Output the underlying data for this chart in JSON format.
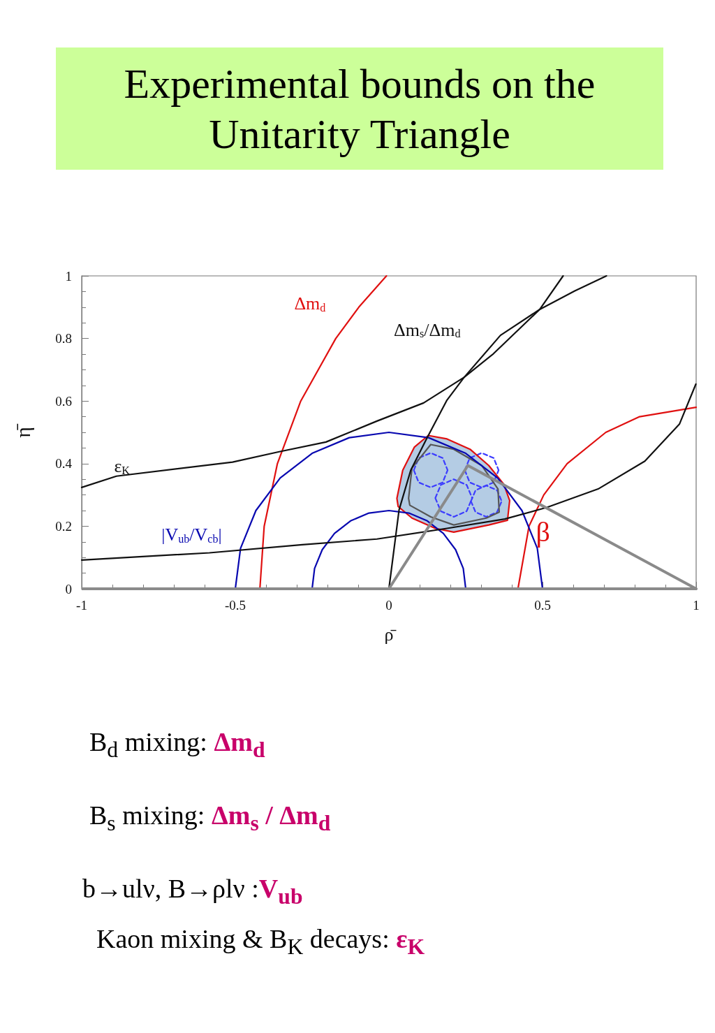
{
  "chart_data": {
    "type": "line",
    "title": "Experimental bounds on the Unitarity Triangle",
    "xlabel": "ρ̄",
    "ylabel": "η̄",
    "annotations": [
      "B$_{d}$  mixing:  Δm$_{d}$",
      "B$_{s}$  mixing: Δm$_{s}$ / Δm$_{d}$",
      "b→ulν, B→ρlν :V$_{ub}$",
      "Kaon mixing & B$_{K}$ decays:   ε$_{K}$"
    ],
    "xlim": [
      -1,
      1
    ],
    "ylim": [
      0,
      1
    ],
    "xticks": [
      -1,
      -0.5,
      0,
      0.5,
      1
    ],
    "yticks": [
      0,
      0.2,
      0.4,
      0.6,
      0.8,
      1
    ],
    "grid": false,
    "marker": "none",
    "ref_lines": [
      {
        "axis": "y",
        "value": 0,
        "color": "#8a8a8a"
      }
    ],
    "series": [
      {
        "type": "area",
        "color": "#b4cce4",
        "x": [
          0.026,
          0.045,
          0.083,
          0.128,
          0.189,
          0.264,
          0.325,
          0.374,
          0.393,
          0.386,
          0.325,
          0.211,
          0.151,
          0.075,
          0.03,
          0.026
        ],
        "values": [
          0.289,
          0.379,
          0.453,
          0.49,
          0.479,
          0.446,
          0.394,
          0.334,
          0.282,
          0.219,
          0.204,
          0.181,
          0.193,
          0.226,
          0.263,
          0.289
        ]
      },
      {
        "color": "#3c3cff",
        "line_style": "dashed",
        "x": [
          0.081,
          0.097,
          0.136,
          0.175,
          0.191,
          null,
          0.081,
          0.097,
          0.136,
          0.175,
          0.191
        ],
        "values": [
          0.379,
          0.418,
          0.434,
          0.418,
          0.379,
          null,
          0.379,
          0.34,
          0.324,
          0.34,
          0.379
        ]
      },
      {
        "color": "#3c3cff",
        "line_style": "dashed",
        "x": [
          0.151,
          0.169,
          0.211,
          0.253,
          0.271,
          null,
          0.151,
          0.169,
          0.211,
          0.253,
          0.271
        ],
        "values": [
          0.29,
          0.332,
          0.35,
          0.332,
          0.29,
          null,
          0.29,
          0.248,
          0.23,
          0.248,
          0.29
        ]
      },
      {
        "color": "#3c3cff",
        "line_style": "dashed",
        "x": [
          0.247,
          0.263,
          0.302,
          0.341,
          0.357,
          null,
          0.247,
          0.263,
          0.302,
          0.341,
          0.357
        ],
        "values": [
          0.379,
          0.418,
          0.434,
          0.418,
          0.379,
          null,
          0.379,
          0.34,
          0.324,
          0.34,
          0.379
        ]
      },
      {
        "color": "#3c3cff",
        "line_style": "dashed",
        "x": [
          0.267,
          0.282,
          0.317,
          0.352,
          0.367,
          null,
          0.267,
          0.282,
          0.317,
          0.352,
          0.367
        ],
        "values": [
          0.28,
          0.315,
          0.33,
          0.315,
          0.28,
          null,
          0.28,
          0.245,
          0.23,
          0.245,
          0.28
        ]
      },
      {
        "color": "#555555",
        "x": [
          0.064,
          0.075,
          0.136,
          0.211,
          0.302,
          0.355,
          0.359,
          null,
          0.064,
          0.068,
          0.136,
          0.211,
          0.317,
          0.359
        ],
        "values": [
          0.289,
          0.386,
          0.461,
          0.446,
          0.394,
          0.319,
          0.245,
          null,
          0.289,
          0.267,
          0.23,
          0.204,
          0.226,
          0.245
        ]
      },
      {
        "color": "#e01010",
        "x": [
          0.026,
          0.045,
          0.083,
          0.128,
          0.189,
          0.264,
          0.325,
          0.374,
          0.393,
          null,
          0.026,
          0.03,
          0.075,
          0.151,
          0.211,
          0.325,
          0.386,
          0.393
        ],
        "values": [
          0.289,
          0.379,
          0.453,
          0.49,
          0.479,
          0.446,
          0.394,
          0.334,
          0.282,
          null,
          0.289,
          0.263,
          0.226,
          0.193,
          0.181,
          0.204,
          0.219,
          0.282
        ]
      },
      {
        "name": "Δm$_{d}$",
        "color": "#e01010",
        "x": [
          -0.42,
          -0.406,
          -0.363,
          -0.287,
          -0.173,
          -0.098,
          -0.008
        ],
        "values": [
          0,
          0.2,
          0.4,
          0.6,
          0.8,
          0.9,
          1.0
        ]
      },
      {
        "name": "β",
        "color": "#e01010",
        "x": [
          0.42,
          0.456,
          0.504,
          0.58,
          0.706,
          0.816,
          1.0
        ],
        "values": [
          0,
          0.2,
          0.3,
          0.4,
          0.5,
          0.55,
          0.58
        ]
      },
      {
        "name": "|V$_{ub}$/V$_{cb}$|",
        "color": "#0808b0",
        "x": [
          -0.5,
          -0.483,
          -0.433,
          -0.354,
          -0.25,
          -0.129,
          0,
          0.129,
          0.25,
          0.354,
          0.433,
          0.483,
          0.5
        ],
        "values": [
          0,
          0.129,
          0.25,
          0.354,
          0.433,
          0.483,
          0.5,
          0.483,
          0.433,
          0.354,
          0.25,
          0.129,
          0
        ]
      },
      {
        "color": "#0808b0",
        "x": [
          -0.25,
          -0.242,
          -0.217,
          -0.177,
          -0.125,
          -0.065,
          0,
          0.065,
          0.125,
          0.177,
          0.217,
          0.242,
          0.25
        ],
        "values": [
          0,
          0.065,
          0.125,
          0.177,
          0.217,
          0.242,
          0.25,
          0.242,
          0.217,
          0.177,
          0.125,
          0.065,
          0
        ]
      },
      {
        "name": "ε$_{K}$",
        "color": "#111111",
        "x": [
          -1,
          -0.887,
          -0.509,
          -0.357,
          -0.205,
          -0.039,
          0.113,
          0.245,
          0.34,
          0.491,
          0.605,
          0.708
        ],
        "values": [
          0.324,
          0.36,
          0.405,
          0.438,
          0.469,
          0.536,
          0.594,
          0.676,
          0.751,
          0.893,
          0.952,
          1.0
        ]
      },
      {
        "color": "#111111",
        "x": [
          -1,
          -0.584,
          -0.282,
          -0.039,
          0.189,
          0.377,
          0.514,
          0.681,
          0.833,
          0.946,
          0.999
        ],
        "values": [
          0.092,
          0.115,
          0.141,
          0.159,
          0.193,
          0.223,
          0.26,
          0.319,
          0.408,
          0.527,
          0.654
        ]
      },
      {
        "name": "Δm$_{s}$/Δm$_{d}$",
        "color": "#111111",
        "x": [
          0.0,
          0.033,
          0.071,
          0.124,
          0.189,
          0.245,
          0.363,
          0.491,
          0.567
        ],
        "values": [
          0,
          0.252,
          0.379,
          0.482,
          0.603,
          0.676,
          0.81,
          0.893,
          1.0
        ]
      },
      {
        "color": "#8a8a8a",
        "x": [
          0,
          0.257,
          1
        ],
        "values": [
          0,
          0.394,
          0
        ]
      }
    ]
  }
}
